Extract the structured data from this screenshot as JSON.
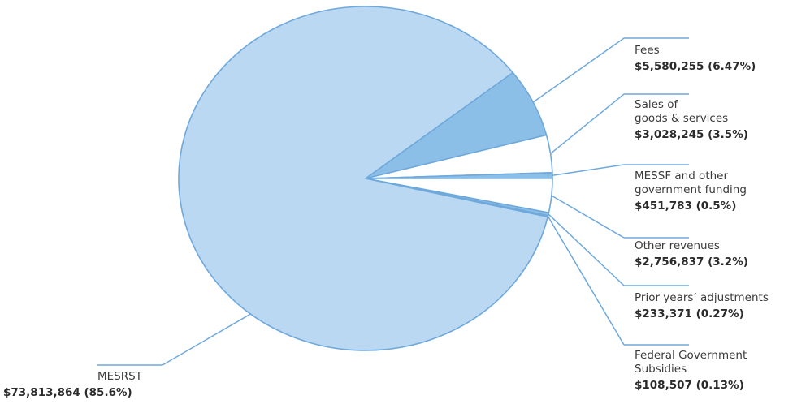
{
  "chart_data": {
    "type": "pie",
    "title": "",
    "slices": [
      {
        "name": "Fees",
        "label_lines": [
          "Fees"
        ],
        "value_label": "$5,580,255 (6.47%)",
        "value": 5580255,
        "percent": 6.47,
        "color": "#8cbfe7"
      },
      {
        "name": "Sales of goods & services",
        "label_lines": [
          "Sales of",
          "goods & services"
        ],
        "value_label": "$3,028,245 (3.5%)",
        "value": 3028245,
        "percent": 3.5,
        "color": "#ffffff"
      },
      {
        "name": "MESSF and other government funding",
        "label_lines": [
          "MESSF and other",
          "government funding"
        ],
        "value_label": "$451,783 (0.5%)",
        "value": 451783,
        "percent": 0.5,
        "color": "#8cbfe7"
      },
      {
        "name": "Other revenues",
        "label_lines": [
          "Other revenues"
        ],
        "value_label": "$2,756,837 (3.2%)",
        "value": 2756837,
        "percent": 3.2,
        "color": "#ffffff"
      },
      {
        "name": "Prior years' adjustments",
        "label_lines": [
          "Prior years’ adjustments"
        ],
        "value_label": "$233,371 (0.27%)",
        "value": 233371,
        "percent": 0.27,
        "color": "#8cbfe7"
      },
      {
        "name": "Federal Government Subsidies",
        "label_lines": [
          "Federal Government",
          "Subsidies"
        ],
        "value_label": "$108,507 (0.13%)",
        "value": 108507,
        "percent": 0.13,
        "color": "#ffffff"
      },
      {
        "name": "MESRST",
        "label_lines": [
          "MESRST"
        ],
        "value_label": "$73,813,864 (85.6%)",
        "value": 73813864,
        "percent": 85.6,
        "color": "#bad8f1"
      }
    ],
    "stroke_color": "#6fa9dc",
    "legend": "none"
  }
}
